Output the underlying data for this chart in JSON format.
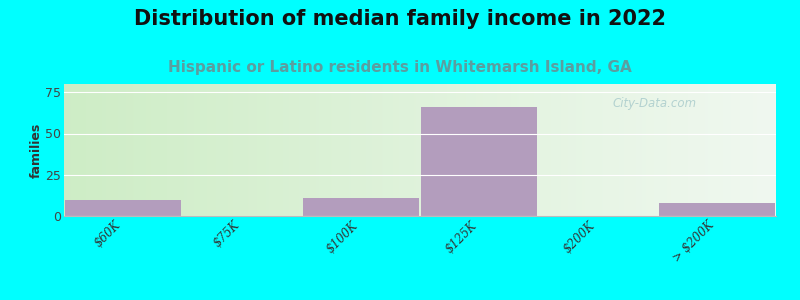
{
  "title": "Distribution of median family income in 2022",
  "subtitle": "Hispanic or Latino residents in Whitemarsh Island, GA",
  "categories": [
    "$60K",
    "$75K",
    "$100K",
    "$125K",
    "$200K",
    "> $200K"
  ],
  "values": [
    10,
    0,
    11,
    66,
    0,
    8
  ],
  "bar_color": "#b39dbd",
  "ylabel": "families",
  "ylim": [
    0,
    80
  ],
  "yticks": [
    0,
    25,
    50,
    75
  ],
  "background_color": "#00ffff",
  "plot_bg_left": "#c8e6c0",
  "plot_bg_right": "#e8f4e8",
  "plot_bg_top": "#dff0df",
  "plot_bg_bottom": "#c5e6c0",
  "title_fontsize": 15,
  "subtitle_fontsize": 11,
  "subtitle_color": "#5b9ea0",
  "watermark": "City-Data.com",
  "watermark_color": "#aacccc",
  "grid_color": "#ffffff",
  "ylabel_fontsize": 9
}
